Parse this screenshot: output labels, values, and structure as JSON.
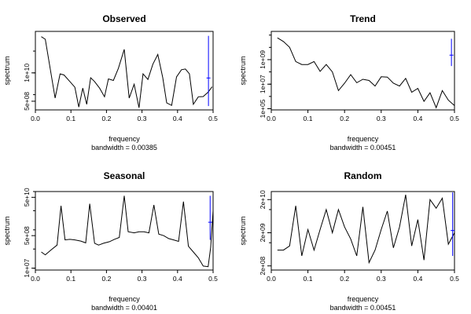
{
  "chart_data": [
    {
      "type": "line",
      "title": "Observed",
      "xlabel": "frequency",
      "ylabel": "spectrum",
      "bandwidth_label": "bandwidth = 0.00385",
      "log_y": true,
      "xlim": [
        0,
        0.5
      ],
      "ylim": [
        200000000.0,
        800000000000.0
      ],
      "x_ticks": [
        0.0,
        0.1,
        0.2,
        0.3,
        0.4,
        0.5
      ],
      "x_tick_labels": [
        "0.0",
        "0.1",
        "0.2",
        "0.3",
        "0.4",
        "0.5"
      ],
      "y_ticks": [
        500000000.0,
        10000000000.0
      ],
      "y_tick_labels": [
        "5e+08",
        "1e+10"
      ],
      "x": [
        0.0167,
        0.0278,
        0.0417,
        0.0556,
        0.0694,
        0.0806,
        0.0972,
        0.1111,
        0.1222,
        0.1333,
        0.1444,
        0.1556,
        0.1667,
        0.1806,
        0.1944,
        0.2056,
        0.2194,
        0.2333,
        0.25,
        0.2639,
        0.2778,
        0.2917,
        0.3028,
        0.3167,
        0.3306,
        0.3444,
        0.3583,
        0.3694,
        0.3833,
        0.3972,
        0.4111,
        0.4222,
        0.4333,
        0.4444,
        0.4583,
        0.4722,
        0.4861,
        0.4972
      ],
      "values": [
        460000000000.0,
        350000000000.0,
        16000000000.0,
        700000000.0,
        9000000000.0,
        8000000000.0,
        4000000000.0,
        2200000000.0,
        270000000.0,
        2000000000.0,
        360000000.0,
        6000000000.0,
        4000000000.0,
        2000000000.0,
        800000000.0,
        5300000000.0,
        4500000000.0,
        16000000000.0,
        120000000000.0,
        700000000.0,
        3000000000.0,
        250000000.0,
        9000000000.0,
        5000000000.0,
        25000000000.0,
        70000000000.0,
        6000000000.0,
        420000000.0,
        320000000.0,
        6500000000.0,
        14000000000.0,
        15000000000.0,
        9000000000.0,
        360000000.0,
        800000000.0,
        820000000.0,
        1300000000.0,
        2300000000.0
      ],
      "ci_bar": {
        "x": 0.487,
        "y_low": 300000000.0,
        "y_high": 500000000000.0
      }
    },
    {
      "type": "line",
      "title": "Trend",
      "xlabel": "frequency",
      "ylabel": "spectrum",
      "bandwidth_label": "bandwidth = 0.00451",
      "log_y": true,
      "xlim": [
        0,
        0.5
      ],
      "ylim": [
        80000.0,
        200000000000.0
      ],
      "x_ticks": [
        0.0,
        0.1,
        0.2,
        0.3,
        0.4,
        0.5
      ],
      "x_tick_labels": [
        "0.0",
        "0.1",
        "0.2",
        "0.3",
        "0.4",
        "0.5"
      ],
      "y_ticks": [
        100000.0,
        10000000.0,
        1000000000.0
      ],
      "y_tick_labels": [
        "1e+05",
        "1e+07",
        "1e+09"
      ],
      "x": [
        0.0167,
        0.0333,
        0.05,
        0.0667,
        0.0833,
        0.1,
        0.1167,
        0.1333,
        0.15,
        0.1667,
        0.1833,
        0.2,
        0.2167,
        0.2333,
        0.25,
        0.2667,
        0.2833,
        0.3,
        0.3167,
        0.3333,
        0.35,
        0.3667,
        0.3833,
        0.4,
        0.4167,
        0.4333,
        0.45,
        0.4667,
        0.4833,
        0.5
      ],
      "values": [
        60000000000.0,
        30000000000.0,
        10000000000.0,
        700000000.0,
        400000000.0,
        400000000.0,
        700000000.0,
        110000000.0,
        400000000.0,
        100000000.0,
        3000000.0,
        12000000.0,
        60000000.0,
        13000000.0,
        25000000.0,
        20000000.0,
        7000000.0,
        40000000.0,
        38000000.0,
        12000000.0,
        7000000.0,
        30000000.0,
        2200000.0,
        4500000.0,
        400000.0,
        2000000.0,
        120000.0,
        3000000.0,
        500000.0,
        180000.0
      ],
      "ci_bar": {
        "x": 0.4917,
        "y_low": 300000000.0,
        "y_high": 50000000000.0
      }
    },
    {
      "type": "line",
      "title": "Seasonal",
      "xlabel": "frequency",
      "ylabel": "spectrum",
      "bandwidth_label": "bandwidth = 0.00401",
      "log_y": true,
      "xlim": [
        0,
        0.5
      ],
      "ylim": [
        8000000.0,
        100000000000.0
      ],
      "x_ticks": [
        0.0,
        0.1,
        0.2,
        0.3,
        0.4,
        0.5
      ],
      "x_tick_labels": [
        "0.0",
        "0.1",
        "0.2",
        "0.3",
        "0.4",
        "0.5"
      ],
      "y_ticks": [
        10000000.0,
        500000000.0,
        50000000000.0
      ],
      "y_tick_labels": [
        "1e+07",
        "5e+08",
        "5e+10"
      ],
      "x": [
        0.0167,
        0.0278,
        0.0444,
        0.0611,
        0.0722,
        0.0833,
        0.0972,
        0.1111,
        0.1278,
        0.1417,
        0.1528,
        0.1667,
        0.1778,
        0.1917,
        0.2083,
        0.2222,
        0.2361,
        0.25,
        0.2611,
        0.2778,
        0.2917,
        0.3056,
        0.3194,
        0.3333,
        0.3472,
        0.3611,
        0.375,
        0.3889,
        0.4028,
        0.4167,
        0.4306,
        0.4444,
        0.4583,
        0.4722,
        0.4861,
        0.4931,
        0.5
      ],
      "values": [
        70000000.0,
        50000000.0,
        90000000.0,
        160000000.0,
        18000000000.0,
        300000000.0,
        320000000.0,
        300000000.0,
        260000000.0,
        210000000.0,
        23000000000.0,
        200000000.0,
        160000000.0,
        200000000.0,
        240000000.0,
        320000000.0,
        400000000.0,
        60000000000.0,
        800000000.0,
        700000000.0,
        800000000.0,
        800000000.0,
        700000000.0,
        20000000000.0,
        600000000.0,
        500000000.0,
        350000000.0,
        300000000.0,
        250000000.0,
        30000000000.0,
        140000000.0,
        70000000.0,
        35000000.0,
        13000000.0,
        12000000.0,
        120000000.0,
        10000000000.0
      ],
      "ci_bar": {
        "x": 0.4917,
        "y_low": 300000000.0,
        "y_high": 60000000000.0
      }
    },
    {
      "type": "line",
      "title": "Random",
      "xlabel": "frequency",
      "ylabel": "spectrum",
      "bandwidth_label": "bandwidth = 0.00451",
      "log_y": true,
      "xlim": [
        0,
        0.5
      ],
      "ylim": [
        150000000.0,
        35000000000.0
      ],
      "x_ticks": [
        0.0,
        0.1,
        0.2,
        0.3,
        0.4,
        0.5
      ],
      "x_tick_labels": [
        "0.0",
        "0.1",
        "0.2",
        "0.3",
        "0.4",
        "0.5"
      ],
      "y_ticks": [
        200000000.0,
        2000000000.0,
        20000000000.0
      ],
      "y_tick_labels": [
        "2e+08",
        "2e+09",
        "2e+10"
      ],
      "x": [
        0.0167,
        0.0333,
        0.05,
        0.0667,
        0.0833,
        0.1,
        0.1167,
        0.1333,
        0.15,
        0.1667,
        0.1833,
        0.2,
        0.2167,
        0.2333,
        0.25,
        0.2667,
        0.2833,
        0.3,
        0.3167,
        0.3333,
        0.35,
        0.3667,
        0.3833,
        0.4,
        0.4167,
        0.4333,
        0.45,
        0.4667,
        0.4833,
        0.5
      ],
      "values": [
        600000000.0,
        600000000.0,
        800000000.0,
        13000000000.0,
        400000000.0,
        2500000000.0,
        600000000.0,
        2500000000.0,
        10000000000.0,
        2000000000.0,
        10000000000.0,
        3000000000.0,
        1300000000.0,
        400000000.0,
        12000000000.0,
        250000000.0,
        600000000.0,
        2500000000.0,
        9000000000.0,
        700000000.0,
        3000000000.0,
        28000000000.0,
        800000000.0,
        5000000000.0,
        300000000.0,
        20000000000.0,
        11000000000.0,
        22000000000.0,
        900000000.0,
        2000000000.0
      ],
      "ci_bar": {
        "x": 0.495,
        "y_low": 400000000.0,
        "y_high": 33000000000.0
      }
    }
  ],
  "style": {
    "line_color": "#000000",
    "ci_color": "#0000ff",
    "axis_color": "#000000",
    "background": "#ffffff"
  }
}
